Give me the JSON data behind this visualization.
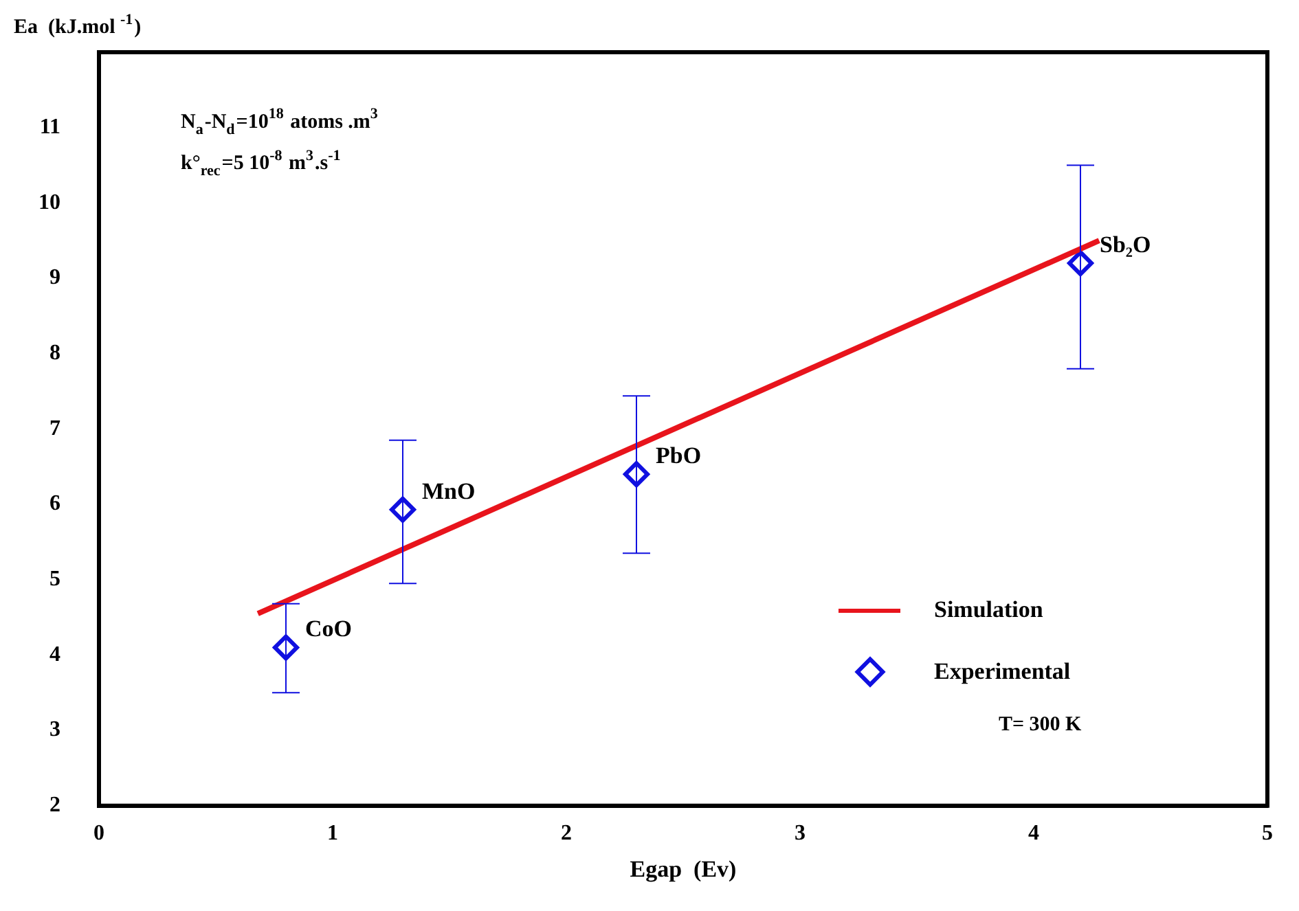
{
  "chart_data": {
    "type": "scatter",
    "xlabel": "Egap  (Ev)",
    "ylabel": "Ea  (kJ.mol $^{-1}$)",
    "xlim": [
      0,
      5
    ],
    "xticks": [
      0,
      1,
      2,
      3,
      4,
      5
    ],
    "ylim": [
      2,
      12
    ],
    "yticks": [
      2,
      3,
      4,
      5,
      6,
      7,
      8,
      9,
      10,
      11
    ],
    "grid": false,
    "legend": "bottom right",
    "series": [
      {
        "name": "Simulation",
        "type": "line",
        "color": "#e8141c",
        "x": [
          0.68,
          4.28
        ],
        "values": [
          4.55,
          9.5
        ],
        "marker": "none",
        "line_style": "solid"
      },
      {
        "name": "Experimental",
        "type": "scatter",
        "color": "#1010e0",
        "marker": "diamond",
        "x": [
          0.8,
          1.3,
          2.3,
          4.2
        ],
        "values": [
          4.1,
          5.93,
          6.4,
          9.2
        ],
        "errors": [
          [
            3.5,
            4.68
          ],
          [
            4.95,
            6.85
          ],
          [
            5.35,
            7.44
          ],
          [
            7.8,
            10.5
          ]
        ]
      }
    ],
    "annotations": [
      "N$_{a}$-N$_{d}$=10$^{18}$ atoms .m$^{3}$",
      "k°$_{rec}$=5 10$^{-8}$ m$^{3}$.s$^{-1}$",
      "T= 300 K",
      {
        "text": "CoO",
        "x": 0.8,
        "y": 4.1
      },
      {
        "text": "MnO",
        "x": 1.3,
        "y": 5.93
      },
      {
        "text": "PbO",
        "x": 2.3,
        "y": 6.4
      },
      {
        "text": "Sb₂O",
        "x": 4.2,
        "y": 9.2
      }
    ]
  }
}
